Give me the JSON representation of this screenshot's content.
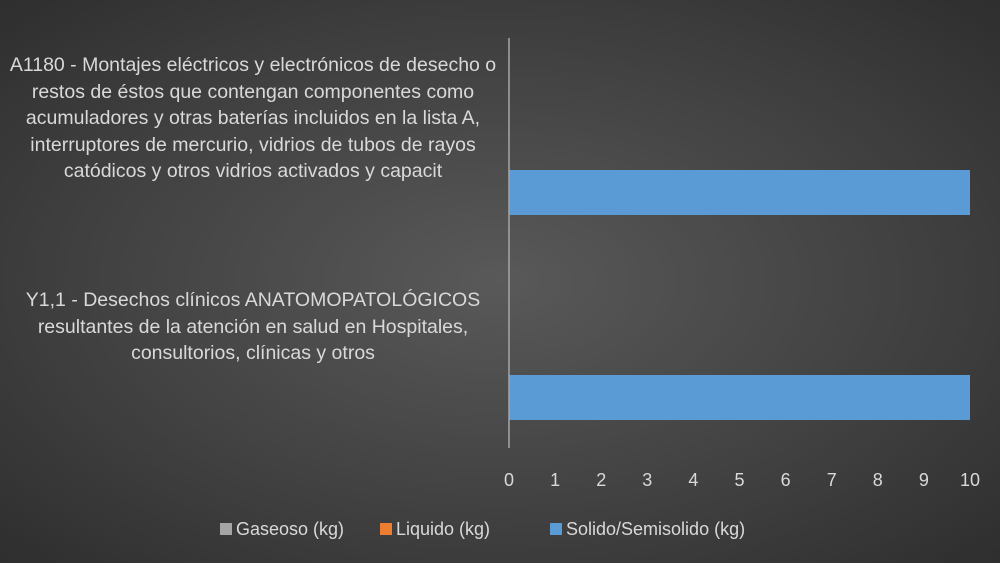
{
  "chart_data": {
    "type": "hbar",
    "categories": [
      "A1180 - Montajes eléctricos y electrónicos de desecho o restos de éstos que contengan componentes como acumuladores y otras baterías incluidos en la lista A, interruptores de mercurio, vidrios de tubos de rayos catódicos y otros vidrios activados y capacit",
      "Y1,1 - Desechos clínicos ANATOMOPATOLÓGICOS resultantes de la atención en salud en Hospitales, consultorios, clínicas y otros"
    ],
    "series": [
      {
        "name": "Gaseoso (kg)",
        "color": "#a5a5a5",
        "values": [
          0,
          0
        ]
      },
      {
        "name": "Liquido (kg)",
        "color": "#ed7d31",
        "values": [
          0,
          0
        ]
      },
      {
        "name": "Solido/Semisolido (kg)",
        "color": "#5b9bd5",
        "values": [
          10,
          10
        ]
      }
    ],
    "xlim": [
      0,
      10
    ],
    "xticks": [
      0,
      1,
      2,
      3,
      4,
      5,
      6,
      7,
      8,
      9,
      10
    ],
    "legend": "bottom"
  }
}
